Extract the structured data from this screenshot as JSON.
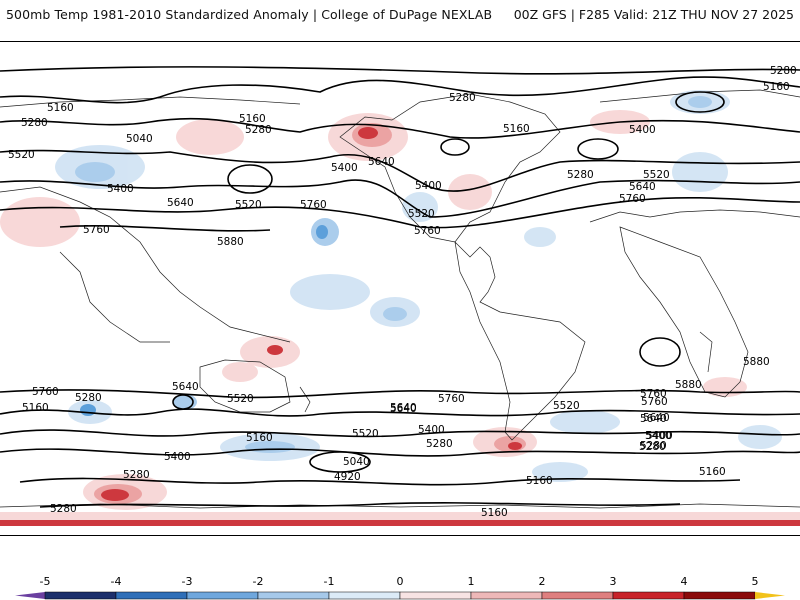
{
  "header": {
    "title": "500mb Temp 1981-2010 Standardized Anomaly | College of DuPage NEXLAB",
    "model_info": "00Z GFS | F285 Valid: 21Z THU NOV 27 2025"
  },
  "map": {
    "contour_labels": [
      "5280",
      "5160",
      "5160",
      "5280",
      "5040",
      "5160",
      "5280",
      "5520",
      "5400",
      "5640",
      "5400",
      "5520",
      "5640",
      "5760",
      "5760",
      "5880",
      "5400",
      "5520",
      "5760",
      "5280",
      "5160",
      "5400",
      "5280",
      "5520",
      "5640",
      "5760",
      "5160",
      "5280",
      "5880",
      "5880",
      "5760",
      "5640",
      "5520",
      "5760",
      "5640",
      "5760",
      "5640",
      "5520",
      "5400",
      "5280",
      "5160",
      "5040",
      "4920",
      "5400",
      "5280",
      "5160",
      "5280",
      "5520",
      "5640",
      "5400",
      "5280",
      "5760",
      "5640",
      "5400",
      "5280",
      "5160",
      "5160"
    ],
    "colors": {
      "warm_light": "#f7d4d4",
      "warm_mid": "#e99a9a",
      "warm_strong": "#c8232a",
      "cool_light": "#cfe2f3",
      "cool_mid": "#a3c8ea",
      "cool_strong": "#4b95d6",
      "contour": "#000000",
      "coastline": "#222222"
    }
  },
  "colorbar": {
    "tick_labels": [
      "-5",
      "-4",
      "-3",
      "-2",
      "-1",
      "0",
      "1",
      "2",
      "3",
      "4",
      "5"
    ],
    "colors": [
      "#6a3fa0",
      "#1c2f6b",
      "#2f6fb8",
      "#6fa7dd",
      "#a6c9ea",
      "#dcebf7",
      "#f7e3e3",
      "#eeb8b8",
      "#df7f7f",
      "#c8232a",
      "#8b0a0a",
      "#f2c21a"
    ]
  }
}
